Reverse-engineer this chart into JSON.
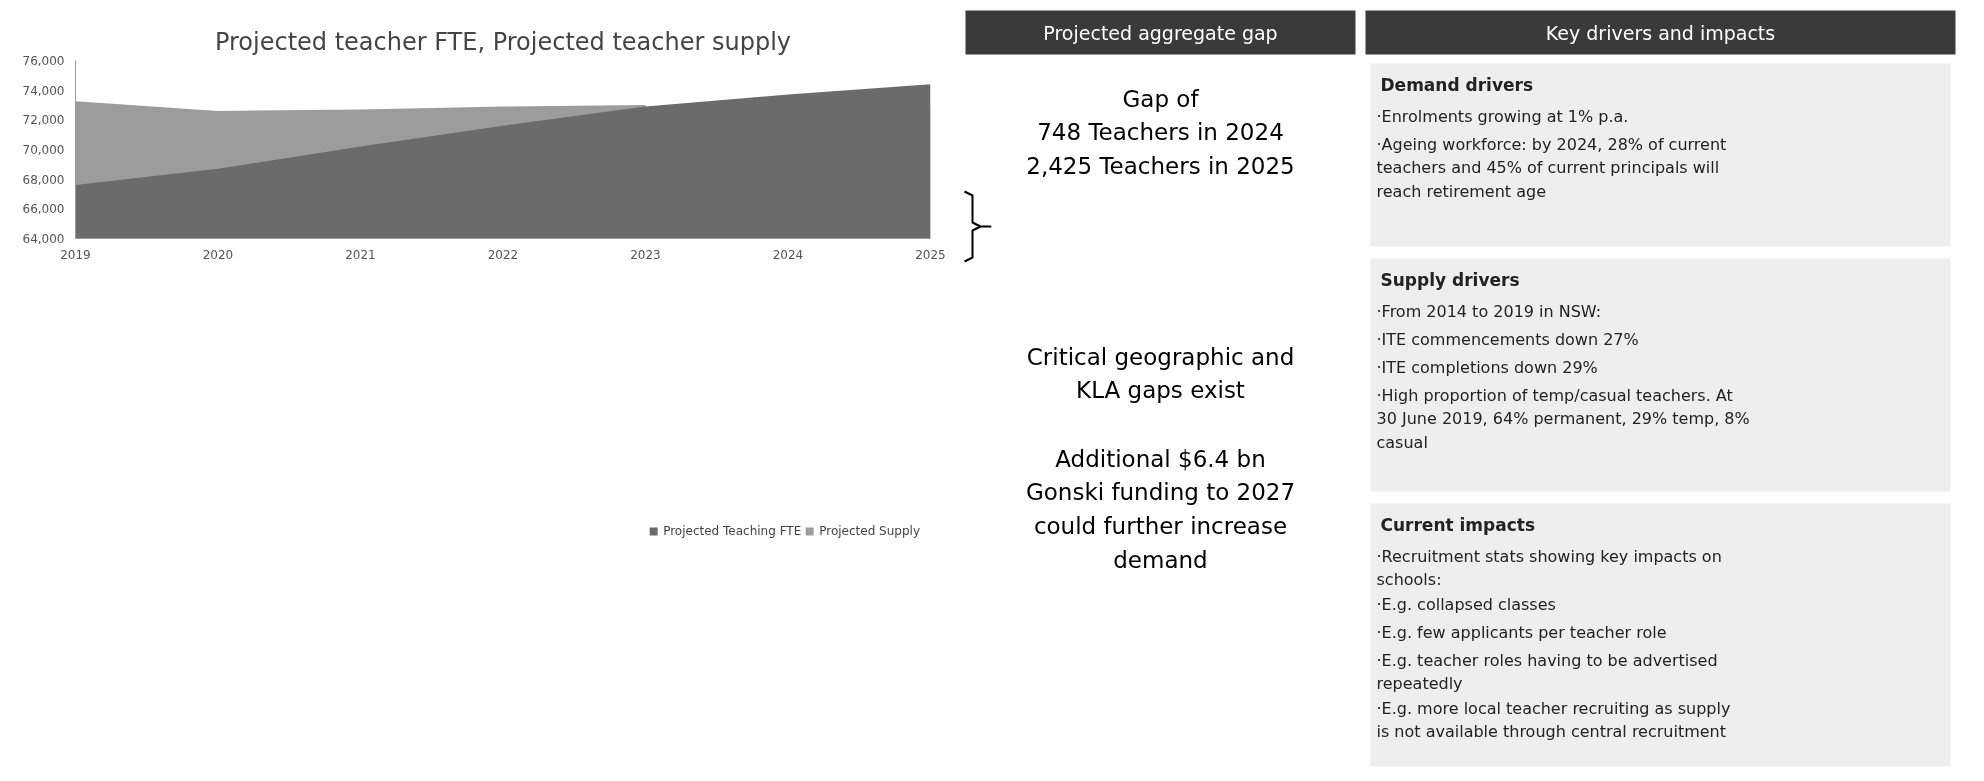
{
  "chart_data": [
    {
      "type": "area",
      "title": "Projected teacher FTE, Projected teacher supply",
      "x": [
        2019,
        2020,
        2021,
        2022,
        2023,
        2024,
        2025
      ],
      "xlim": [
        2019,
        2025
      ],
      "xticks": [
        2019,
        2020,
        2021,
        2022,
        2023,
        2024,
        2025
      ],
      "ylim": [
        64000,
        76000
      ],
      "yticks": [
        {
          "value": 64000,
          "label": "64,000"
        },
        {
          "value": 66000,
          "label": "66,000"
        },
        {
          "value": 68000,
          "label": "68,000"
        },
        {
          "value": 70000,
          "label": "70,000"
        },
        {
          "value": 72000,
          "label": "72,000"
        },
        {
          "value": 74000,
          "label": "74,000"
        },
        {
          "value": 76000,
          "label": "76,000"
        }
      ],
      "grid": false,
      "legend": "bottom",
      "series": [
        {
          "name": "Projected Teaching FTE",
          "color": "#6b6b6b",
          "values": [
            67600,
            68700,
            70200,
            71600,
            72900,
            73700,
            74400
          ]
        },
        {
          "name": "Projected Supply",
          "color": "#9c9c9c",
          "values": [
            73250,
            72600,
            72700,
            72900,
            73000,
            null,
            73000
          ]
        }
      ]
    },
    {
      "type": "other",
      "title": "Projected aggregate gap",
      "annotations": [
        "Gap of\n748 Teachers in 2024\n2,425 Teachers in 2025",
        "Critical geographic and\nKLA gaps exist",
        "Additional $6.4 bn\nGonski funding to 2027\ncould further increase\ndemand"
      ]
    },
    {
      "type": "other",
      "title": "Key drivers and impacts",
      "subtitle": "Demand drivers",
      "annotations": [
        "·Enrolments growing at 1% p.a.",
        "·Ageing workforce: by 2024, 28% of current\n teachers and 45% of current principals will\n reach retirement age"
      ]
    },
    {
      "type": "other",
      "title": "Supply drivers",
      "annotations": [
        "·From 2014 to 2019 in NSW:",
        " ·ITE commencements down 27%",
        " ·ITE completions down 29%",
        "·High proportion of temp/casual teachers. At\n 30 June 2019, 64% permanent, 29% temp, 8%\n casual"
      ]
    },
    {
      "type": "other",
      "title": "Current impacts",
      "annotations": [
        "·Recruitment stats showing key impacts on\n schools:",
        " ·E.g. collapsed classes",
        " ·E.g. few applicants per teacher role",
        " ·E.g. teacher roles having to be advertised\n  repeatedly",
        " ·E.g. more local teacher recruiting as supply\n  is not available through central recruitment"
      ]
    }
  ]
}
